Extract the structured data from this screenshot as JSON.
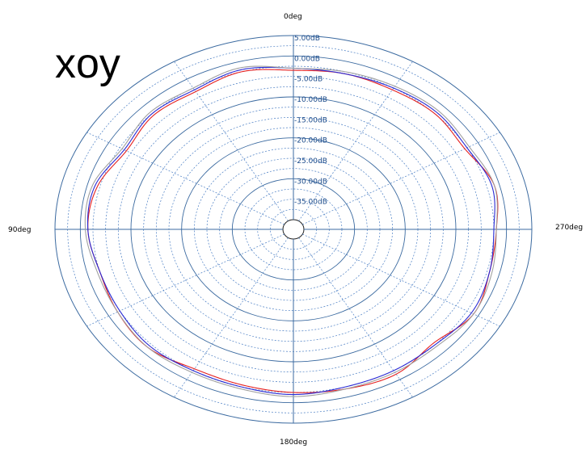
{
  "chart_data": {
    "type": "polar",
    "title": "xoy",
    "angle_labels": {
      "top": "0deg",
      "left": "90deg",
      "right": "270deg",
      "bottom": "180deg"
    },
    "radial_tick_labels": [
      "5.00dB",
      "0.00dB",
      "-5.00dB",
      "-10.00dB",
      "-15.00dB",
      "-20.00dB",
      "-25.00dB",
      "-30.00dB",
      "-35.00dB"
    ],
    "r_range_db": [
      -40,
      5
    ],
    "grid": true,
    "angle_unit": "deg",
    "angle_direction": "counterclockwise from top",
    "series": [
      {
        "color": "#e52020",
        "angles": [
          0,
          15,
          30,
          45,
          60,
          75,
          90,
          105,
          120,
          135,
          150,
          165,
          180,
          195,
          210,
          225,
          240,
          255,
          270,
          285,
          300,
          315,
          330,
          345
        ],
        "values": [
          -3.5,
          -2.5,
          -3.5,
          -3,
          -4,
          -2,
          -1.5,
          -2.5,
          -2,
          -1.5,
          -3,
          -3,
          -2.5,
          -2,
          -1.5,
          -3,
          -1,
          -2,
          -2,
          -1,
          -3,
          -2.5,
          -3,
          -3
        ]
      },
      {
        "color": "#2a2ad4",
        "angles": [
          0,
          15,
          30,
          45,
          60,
          75,
          90,
          105,
          120,
          135,
          150,
          165,
          180,
          195,
          210,
          225,
          240,
          255,
          270,
          285,
          300,
          315,
          330,
          345
        ],
        "values": [
          -3,
          -2,
          -3,
          -2.5,
          -3.5,
          -1.5,
          -1.5,
          -2.5,
          -2.5,
          -2,
          -2.5,
          -2.5,
          -2,
          -2.5,
          -2.5,
          -2.5,
          -1.5,
          -2,
          -2.5,
          -1.5,
          -2.5,
          -2,
          -2.5,
          -3
        ]
      },
      {
        "color": "#a0a0a0",
        "angles": [
          0,
          15,
          30,
          45,
          60,
          75,
          90,
          105,
          120,
          135,
          150,
          165,
          180,
          195,
          210,
          225,
          240,
          255,
          270,
          285,
          300,
          315,
          330,
          345
        ],
        "values": [
          -3,
          -1.5,
          -2.5,
          -2,
          -3,
          -1,
          -1,
          -2,
          -2,
          -1.5,
          -2,
          -2,
          -1.5,
          -2,
          -2,
          -2,
          -1,
          -1.5,
          -2,
          -1,
          -2,
          -1.5,
          -2,
          -2.5
        ]
      }
    ]
  }
}
